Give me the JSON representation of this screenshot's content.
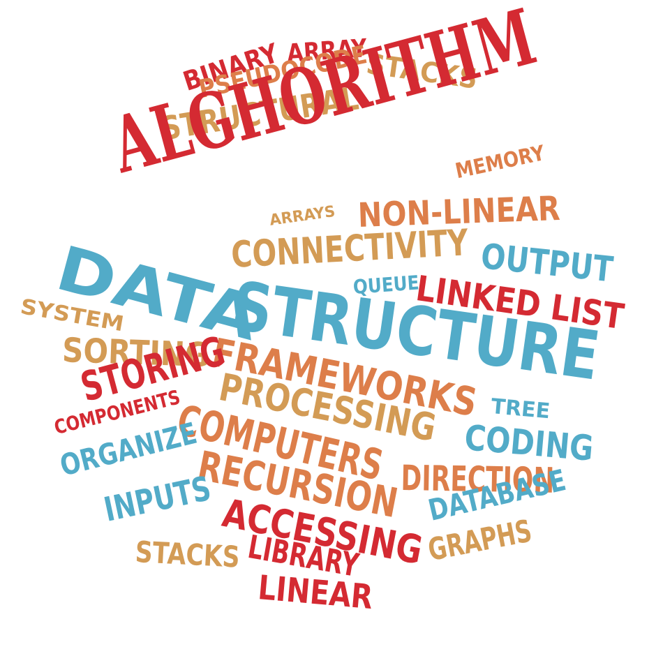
{
  "colors": {
    "red": "#d42a32",
    "orange": "#dd7e4a",
    "gold": "#d39b55",
    "blue": "#52abc8",
    "background": "#ffffff"
  },
  "words": [
    {
      "id": "binary",
      "text": "BINARY",
      "color": "red"
    },
    {
      "id": "array",
      "text": "ARRAY",
      "color": "red"
    },
    {
      "id": "stacks-top",
      "text": "STACKS",
      "color": "gold"
    },
    {
      "id": "pseudocode",
      "text": "PSEUDOCODE",
      "color": "orange"
    },
    {
      "id": "structural",
      "text": "STRUCTURAL",
      "color": "gold"
    },
    {
      "id": "alghorithm",
      "text": "ALGHORITHM",
      "color": "red"
    },
    {
      "id": "memory",
      "text": "MEMORY",
      "color": "orange"
    },
    {
      "id": "non-linear",
      "text": "NON-LINEAR",
      "color": "orange"
    },
    {
      "id": "arrays",
      "text": "ARRAYS",
      "color": "gold"
    },
    {
      "id": "connectivity",
      "text": "CONNECTIVITY",
      "color": "gold"
    },
    {
      "id": "data",
      "text": "DATA",
      "color": "blue"
    },
    {
      "id": "output",
      "text": "OUTPUT",
      "color": "blue"
    },
    {
      "id": "queue",
      "text": "QUEUE",
      "color": "blue"
    },
    {
      "id": "linked-list",
      "text": "LINKED LIST",
      "color": "red"
    },
    {
      "id": "system",
      "text": "SYSTEM",
      "color": "gold"
    },
    {
      "id": "structure",
      "text": "STRUCTURE",
      "color": "blue"
    },
    {
      "id": "sorting",
      "text": "SORTING",
      "color": "gold"
    },
    {
      "id": "frameworks",
      "text": "FRAMEWORKS",
      "color": "orange"
    },
    {
      "id": "storing",
      "text": "STORING",
      "color": "red"
    },
    {
      "id": "processing",
      "text": "PROCESSING",
      "color": "gold"
    },
    {
      "id": "tree",
      "text": "TREE",
      "color": "blue"
    },
    {
      "id": "components",
      "text": "COMPONENTS",
      "color": "red"
    },
    {
      "id": "computers",
      "text": "COMPUTERS",
      "color": "orange"
    },
    {
      "id": "coding",
      "text": "CODING",
      "color": "blue"
    },
    {
      "id": "organize",
      "text": "ORGANIZE",
      "color": "blue"
    },
    {
      "id": "recursion",
      "text": "RECURSION",
      "color": "orange"
    },
    {
      "id": "direction",
      "text": "DIRECTION",
      "color": "orange"
    },
    {
      "id": "inputs",
      "text": "INPUTS",
      "color": "blue"
    },
    {
      "id": "accessing",
      "text": "ACCESSING",
      "color": "red"
    },
    {
      "id": "database",
      "text": "DATABASE",
      "color": "blue"
    },
    {
      "id": "stacks-bottom",
      "text": "STACKS",
      "color": "gold"
    },
    {
      "id": "library",
      "text": "LIBRARY",
      "color": "red"
    },
    {
      "id": "graphs",
      "text": "GRAPHS",
      "color": "gold"
    },
    {
      "id": "linear",
      "text": "LINEAR",
      "color": "red"
    }
  ]
}
